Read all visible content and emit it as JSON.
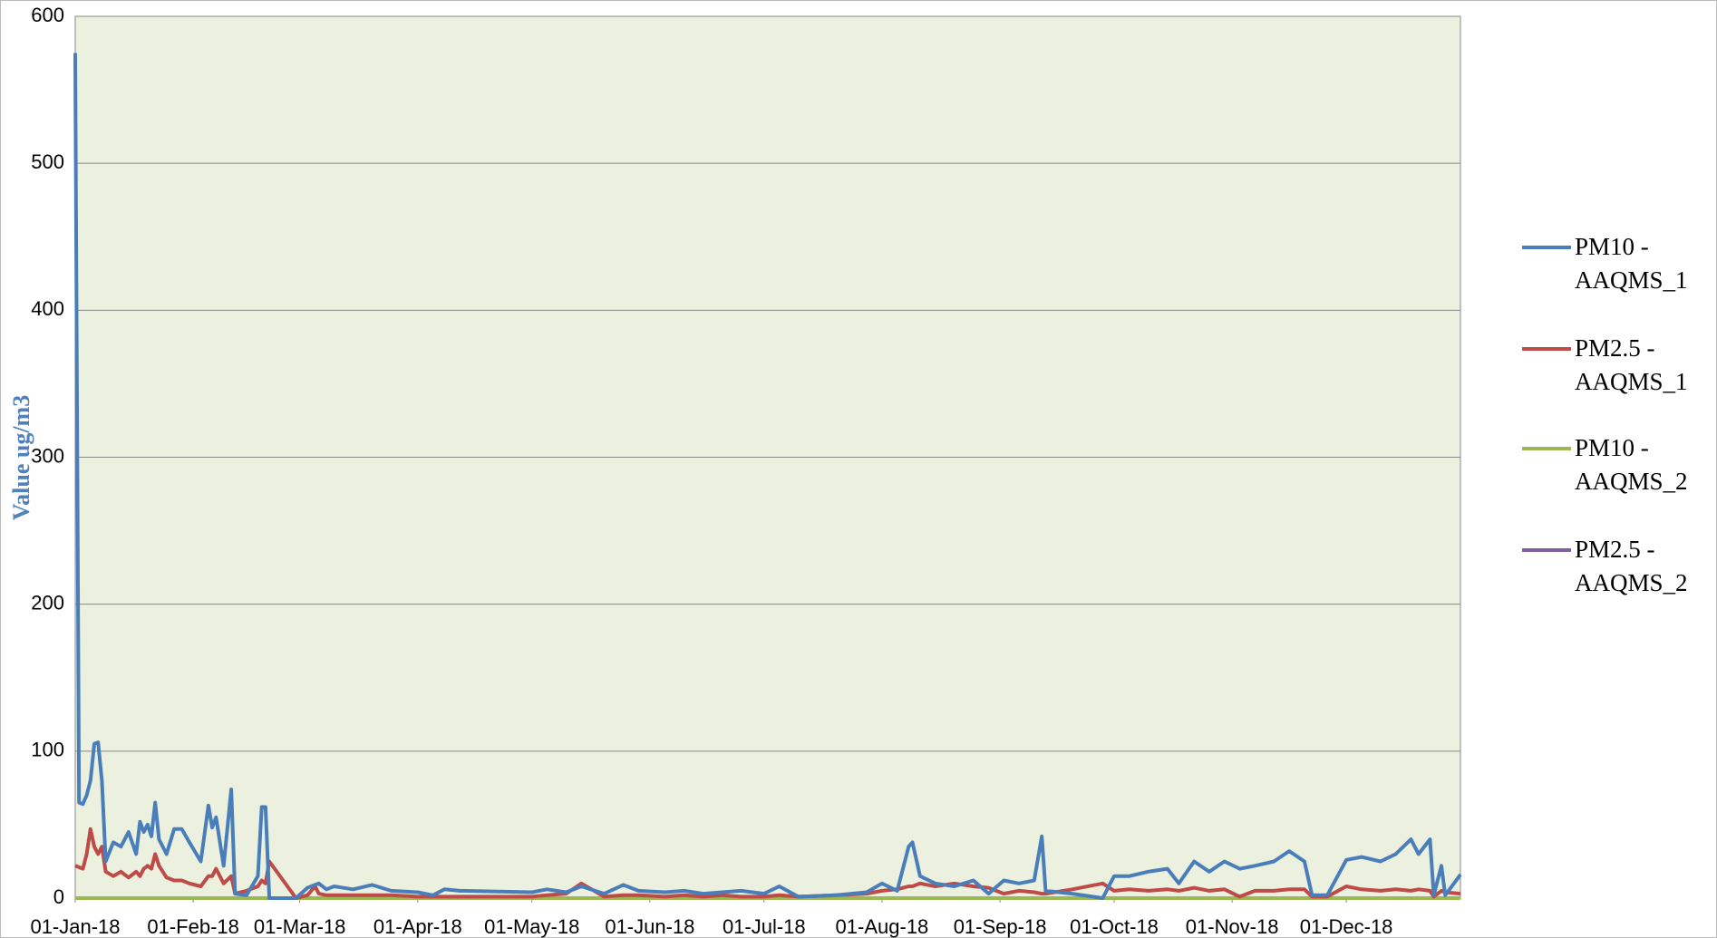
{
  "chart_data": {
    "type": "line",
    "y_label": "Value ug/m3",
    "x": [
      "2018-01-01",
      "2018-01-02",
      "2018-01-03",
      "2018-01-04",
      "2018-01-05",
      "2018-01-06",
      "2018-01-07",
      "2018-01-08",
      "2018-01-09",
      "2018-01-11",
      "2018-01-13",
      "2018-01-15",
      "2018-01-17",
      "2018-01-18",
      "2018-01-19",
      "2018-01-20",
      "2018-01-21",
      "2018-01-22",
      "2018-01-23",
      "2018-01-25",
      "2018-01-27",
      "2018-01-29",
      "2018-01-31",
      "2018-02-03",
      "2018-02-05",
      "2018-02-06",
      "2018-02-07",
      "2018-02-09",
      "2018-02-11",
      "2018-02-12",
      "2018-02-15",
      "2018-02-18",
      "2018-02-19",
      "2018-02-20",
      "2018-02-21",
      "2018-02-28",
      "2018-03-03",
      "2018-03-05",
      "2018-03-06",
      "2018-03-08",
      "2018-03-10",
      "2018-03-15",
      "2018-03-20",
      "2018-03-25",
      "2018-04-01",
      "2018-04-05",
      "2018-04-08",
      "2018-04-12",
      "2018-05-01",
      "2018-05-05",
      "2018-05-10",
      "2018-05-14",
      "2018-05-20",
      "2018-05-25",
      "2018-05-29",
      "2018-06-05",
      "2018-06-10",
      "2018-06-15",
      "2018-06-20",
      "2018-06-25",
      "2018-07-01",
      "2018-07-05",
      "2018-07-10",
      "2018-07-20",
      "2018-07-28",
      "2018-08-01",
      "2018-08-05",
      "2018-08-08",
      "2018-08-09",
      "2018-08-11",
      "2018-08-15",
      "2018-08-20",
      "2018-08-25",
      "2018-08-29",
      "2018-09-02",
      "2018-09-06",
      "2018-09-10",
      "2018-09-12",
      "2018-09-13",
      "2018-09-20",
      "2018-09-28",
      "2018-10-01",
      "2018-10-05",
      "2018-10-10",
      "2018-10-15",
      "2018-10-18",
      "2018-10-22",
      "2018-10-26",
      "2018-10-30",
      "2018-11-03",
      "2018-11-07",
      "2018-11-12",
      "2018-11-16",
      "2018-11-20",
      "2018-11-22",
      "2018-11-26",
      "2018-12-01",
      "2018-12-05",
      "2018-12-10",
      "2018-12-14",
      "2018-12-18",
      "2018-12-20",
      "2018-12-23",
      "2018-12-24",
      "2018-12-26",
      "2018-12-27",
      "2018-12-31"
    ],
    "series": [
      {
        "name": "PM10 - AAQMS_1",
        "color": "#4a7ebb",
        "values": [
          575,
          65,
          64,
          70,
          80,
          105,
          106,
          80,
          25,
          38,
          35,
          45,
          30,
          52,
          45,
          50,
          42,
          65,
          40,
          30,
          47,
          47,
          38,
          25,
          63,
          48,
          55,
          22,
          74,
          3,
          2,
          15,
          62,
          62,
          0,
          0,
          7,
          9,
          10,
          6,
          8,
          6,
          9,
          5,
          4,
          2,
          6,
          5,
          4,
          6,
          4,
          8,
          3,
          9,
          5,
          4,
          5,
          3,
          4,
          5,
          3,
          8,
          1,
          2,
          4,
          10,
          5,
          35,
          38,
          15,
          10,
          8,
          12,
          3,
          12,
          10,
          12,
          42,
          5,
          3,
          0,
          15,
          15,
          18,
          20,
          10,
          25,
          18,
          25,
          20,
          22,
          25,
          32,
          25,
          2,
          2,
          26,
          28,
          25,
          30,
          40,
          30,
          40,
          2,
          22,
          2,
          16
        ]
      },
      {
        "name": "PM2.5 - AAQMS_1",
        "color": "#be4b48",
        "values": [
          22,
          21,
          20,
          30,
          47,
          35,
          30,
          35,
          18,
          15,
          18,
          14,
          18,
          15,
          20,
          22,
          20,
          30,
          22,
          14,
          12,
          12,
          10,
          8,
          15,
          15,
          20,
          10,
          15,
          3,
          5,
          8,
          12,
          10,
          25,
          0,
          2,
          8,
          3,
          2,
          2,
          2,
          2,
          2,
          1,
          1,
          1,
          1,
          1,
          2,
          3,
          10,
          1,
          2,
          2,
          1,
          2,
          1,
          2,
          1,
          1,
          2,
          1,
          2,
          3,
          5,
          6,
          8,
          8,
          10,
          8,
          10,
          8,
          7,
          3,
          5,
          4,
          3,
          3,
          6,
          10,
          5,
          6,
          5,
          6,
          5,
          7,
          5,
          6,
          1,
          5,
          5,
          6,
          6,
          1,
          1,
          8,
          6,
          5,
          6,
          5,
          6,
          5,
          1,
          5,
          4,
          3
        ]
      },
      {
        "name": "PM10 - AAQMS_2",
        "color": "#98b954",
        "x": [
          "2018-01-01",
          "2018-12-31"
        ],
        "values": [
          0,
          0
        ]
      },
      {
        "name": "PM2.5 - AAQMS_2",
        "color": "#7d60a0",
        "x": [
          "2018-01-01",
          "2018-12-31"
        ],
        "values": [
          0,
          0
        ]
      }
    ],
    "xlim": [
      "2018-01-01",
      "2018-12-31"
    ],
    "xticks": [
      {
        "value": "2018-01-01",
        "label": "01-Jan-18"
      },
      {
        "value": "2018-02-01",
        "label": "01-Feb-18"
      },
      {
        "value": "2018-03-01",
        "label": "01-Mar-18"
      },
      {
        "value": "2018-04-01",
        "label": "01-Apr-18"
      },
      {
        "value": "2018-05-01",
        "label": "01-May-18"
      },
      {
        "value": "2018-06-01",
        "label": "01-Jun-18"
      },
      {
        "value": "2018-07-01",
        "label": "01-Jul-18"
      },
      {
        "value": "2018-08-01",
        "label": "01-Aug-18"
      },
      {
        "value": "2018-09-01",
        "label": "01-Sep-18"
      },
      {
        "value": "2018-10-01",
        "label": "01-Oct-18"
      },
      {
        "value": "2018-11-01",
        "label": "01-Nov-18"
      },
      {
        "value": "2018-12-01",
        "label": "01-Dec-18"
      }
    ],
    "ylim": [
      0,
      600
    ],
    "yticks": [
      0,
      100,
      200,
      300,
      400,
      500,
      600
    ],
    "grid": true,
    "legend": "right"
  }
}
